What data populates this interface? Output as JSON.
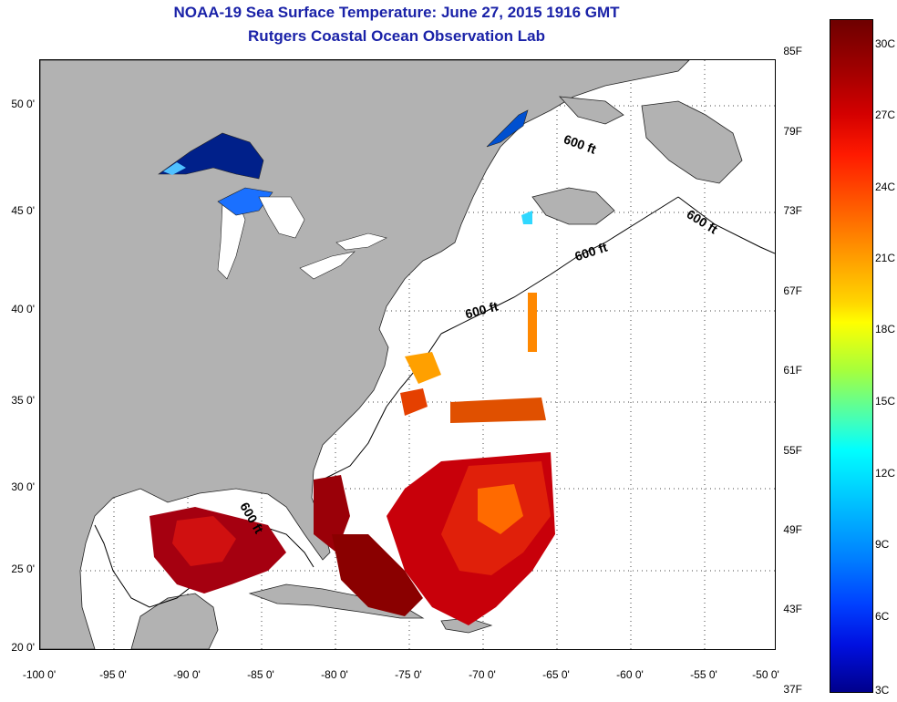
{
  "title": {
    "line1": "NOAA-19 Sea Surface Temperature:  June 27, 2015 1916 GMT",
    "line2": "Rutgers Coastal Ocean Observation Lab"
  },
  "map": {
    "lat_ticks": [
      "50 0'",
      "45 0'",
      "40 0'",
      "35 0'",
      "30 0'",
      "25 0'",
      "20 0'"
    ],
    "lon_ticks": [
      "-100 0'",
      "-95 0'",
      "-90 0'",
      "-85 0'",
      "-80 0'",
      "-75 0'",
      "-70 0'",
      "-65 0'",
      "-60 0'",
      "-55 0'",
      "-50 0'"
    ],
    "contour_label": "600 ft",
    "land_color": "#b2b2b2",
    "water_color": "#ffffff"
  },
  "colorbar": {
    "fahrenheit": [
      "85F",
      "79F",
      "73F",
      "67F",
      "61F",
      "55F",
      "49F",
      "43F",
      "37F"
    ],
    "celsius": [
      "30C",
      "27C",
      "24C",
      "21C",
      "18C",
      "15C",
      "12C",
      "9C",
      "6C",
      "3C"
    ]
  }
}
